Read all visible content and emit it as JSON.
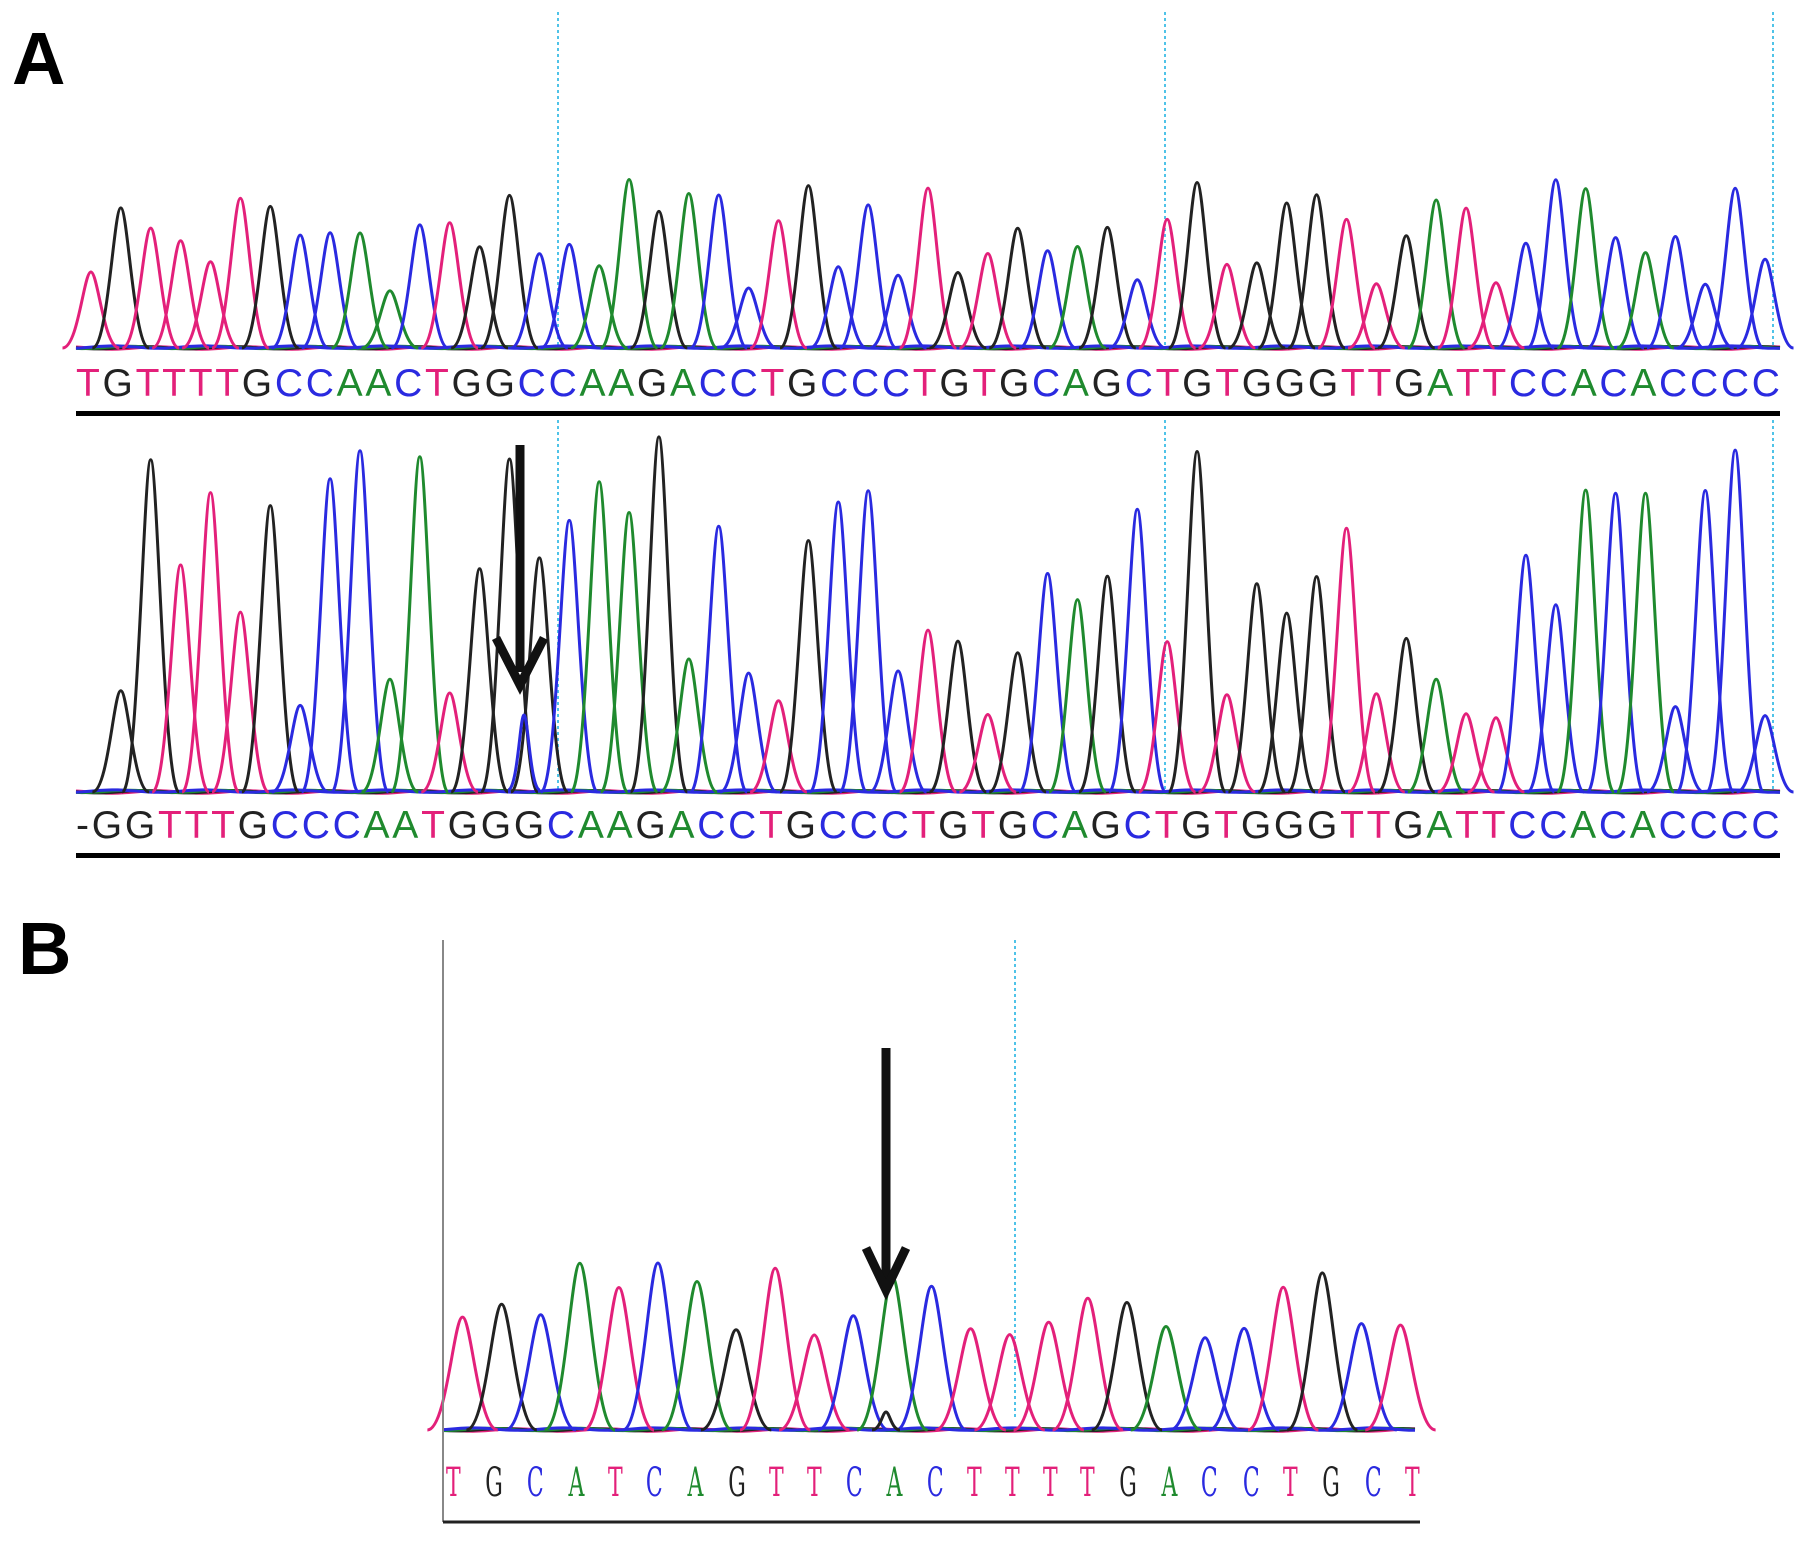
{
  "panels": {
    "a_label": "A",
    "b_label": "B"
  },
  "colors": {
    "A": "#1f8a2e",
    "C": "#2a2ae0",
    "G": "#222222",
    "T": "#e3207a",
    "marker": "#4fc3e8",
    "arrow": "#111111"
  },
  "sequences": {
    "a_top": "TGTTTTGCCAACTGGCCAAGACCTGCCCTGTGCAGCTGTGGGTTGATTCCACACCCC",
    "a_bottom": "-GGTTTGCCCAATGGGCAAGACCTGCCCTGTGCAGCTGTGGGTTGATTCCACACCCC",
    "b": "TGCATCAGTTCACTTTTGACCTGCT"
  },
  "icons": {
    "arrow_a": "down-arrow-icon",
    "arrow_b": "down-arrow-icon"
  }
}
